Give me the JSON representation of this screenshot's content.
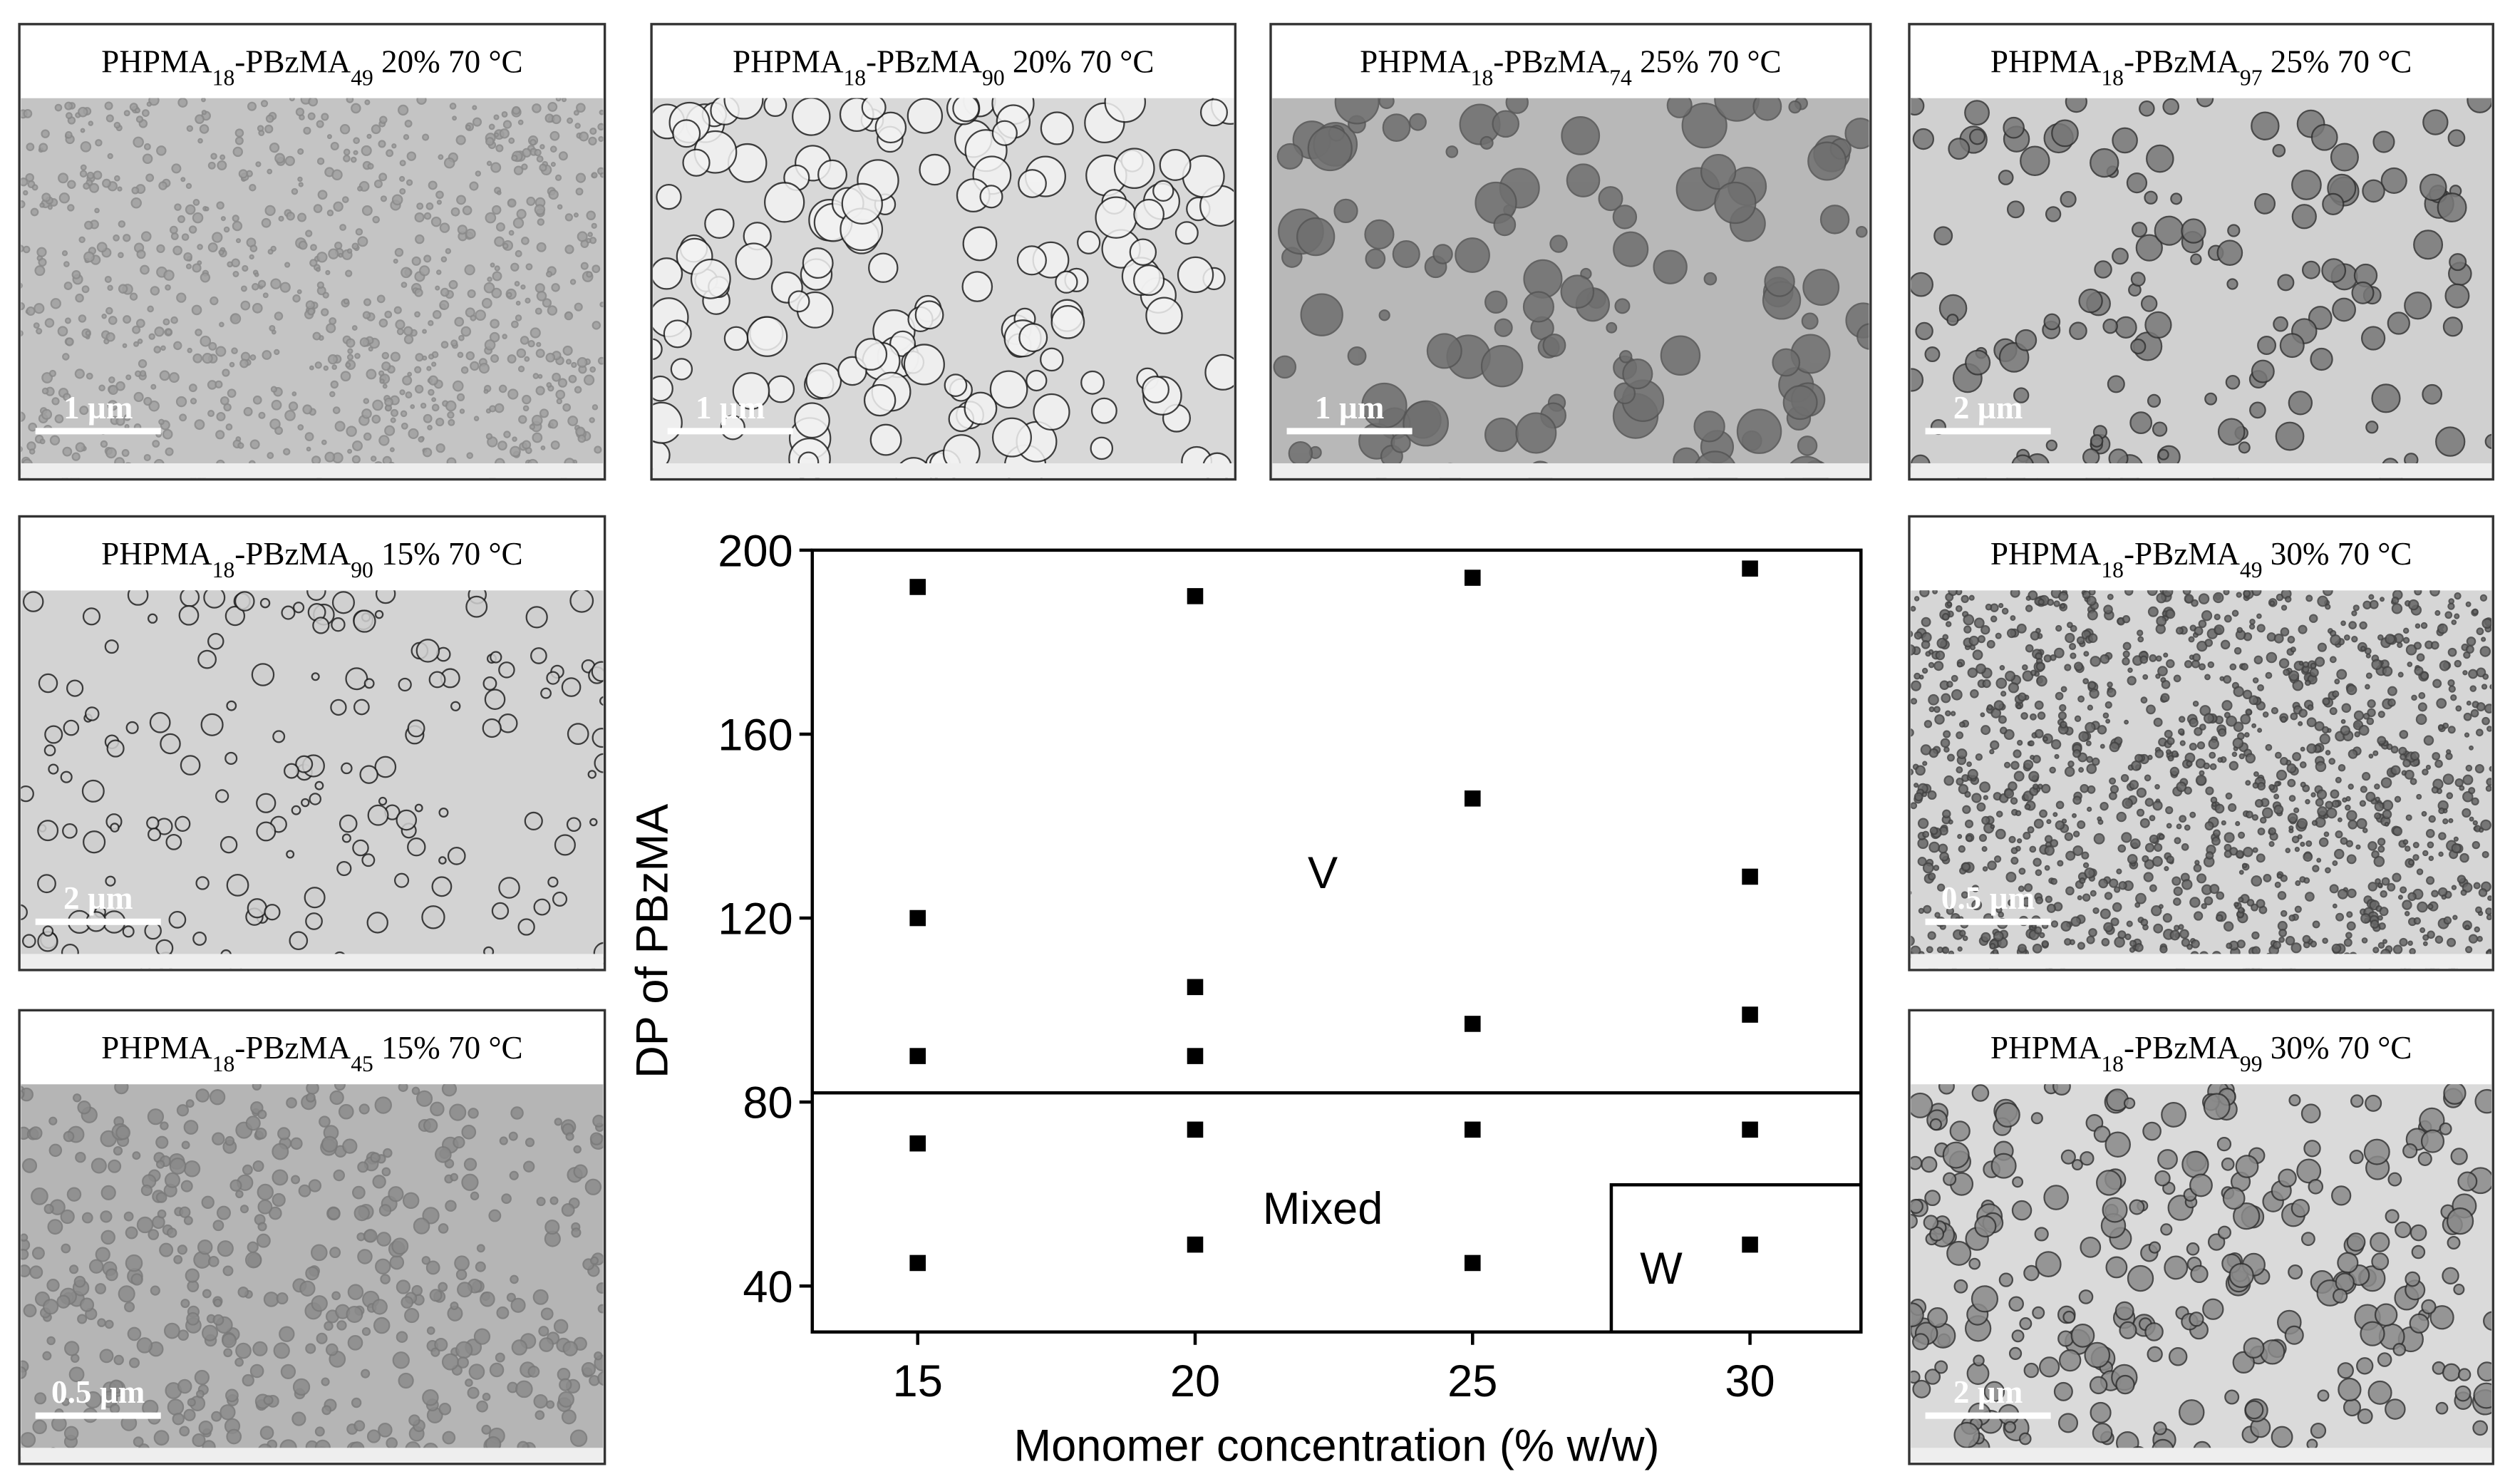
{
  "chart_data": {
    "type": "scatter",
    "x_label": "Monomer concentration (% w/w)",
    "y_label": "DP of PBzMA",
    "x": [
      15,
      15,
      15,
      15,
      15,
      20,
      20,
      20,
      20,
      20,
      25,
      25,
      25,
      25,
      25,
      30,
      30,
      30,
      30,
      30
    ],
    "y": [
      192,
      120,
      90,
      71,
      45,
      190,
      105,
      90,
      74,
      49,
      194,
      146,
      97,
      74,
      45,
      196,
      129,
      99,
      74,
      49
    ],
    "color": "#000000",
    "xlim": [
      13.1,
      32
    ],
    "ylim": [
      30,
      200
    ],
    "xticks": [
      15,
      20,
      25,
      30
    ],
    "yticks": [
      40,
      80,
      120,
      160,
      200
    ],
    "boundaries": {
      "mixed_top": 82,
      "w_left": 27.5,
      "w_top": 62
    },
    "annotations": [
      {
        "text": "V",
        "x": 22.3,
        "y": 130
      },
      {
        "text": "Mixed",
        "x": 22.3,
        "y": 57
      },
      {
        "text": "W",
        "x": 28.4,
        "y": 44
      }
    ]
  },
  "panels": [
    {
      "caption": [
        "PHPMA",
        "18",
        "-PBzMA",
        "49",
        " 20% 70 °C"
      ],
      "scale_bar": "1 µm"
    },
    {
      "caption": [
        "PHPMA",
        "18",
        "-PBzMA",
        "90",
        " 20% 70 °C"
      ],
      "scale_bar": "1 µm"
    },
    {
      "caption": [
        "PHPMA",
        "18",
        "-PBzMA",
        "74",
        " 25% 70 °C"
      ],
      "scale_bar": "1 µm"
    },
    {
      "caption": [
        "PHPMA",
        "18",
        "-PBzMA",
        "97",
        " 25% 70 °C"
      ],
      "scale_bar": "2 µm"
    },
    {
      "caption": [
        "PHPMA",
        "18",
        "-PBzMA",
        "90",
        " 15% 70 °C"
      ],
      "scale_bar": "2 µm"
    },
    {
      "caption": [
        "PHPMA",
        "18",
        "-PBzMA",
        "45",
        " 15% 70 °C"
      ],
      "scale_bar": "0.5 µm"
    },
    {
      "caption": [
        "PHPMA",
        "18",
        "-PBzMA",
        "49",
        " 30% 70 °C"
      ],
      "scale_bar": "0.5 µm"
    },
    {
      "caption": [
        "PHPMA",
        "18",
        "-PBzMA",
        "99",
        " 30% 70 °C"
      ],
      "scale_bar": "2 µm"
    }
  ]
}
